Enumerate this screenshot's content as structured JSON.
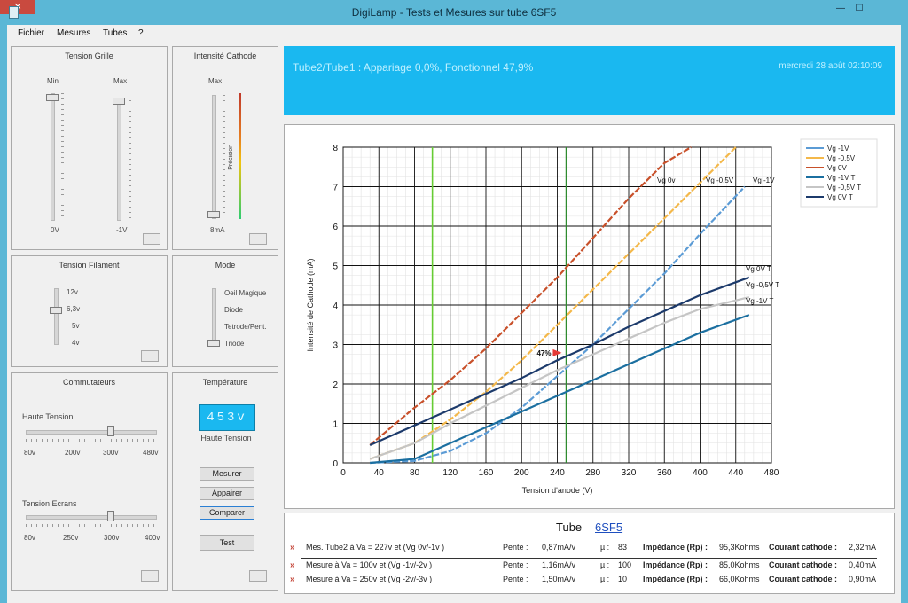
{
  "window": {
    "title": "DigiLamp - Tests et Mesures sur tube 6SF5",
    "minimize": "—",
    "maximize": "☐",
    "close": "✕"
  },
  "menu": [
    "Fichier",
    "Mesures",
    "Tubes",
    "?"
  ],
  "tension_grille": {
    "title": "Tension Grille",
    "min_label": "Min",
    "max_label": "Max",
    "bottom_left": "0V",
    "bottom_right": "-1V"
  },
  "intensite_cathode": {
    "title": "Intensité Cathode",
    "max_label": "Max",
    "bottom": "8mA",
    "vertical": "Précision"
  },
  "tension_filament": {
    "title": "Tension Filament",
    "levels": [
      "12v",
      "6,3v",
      "5v",
      "4v"
    ]
  },
  "mode": {
    "title": "Mode",
    "options": [
      "Oeil Magique",
      "Diode",
      "Tetrode/Pent.",
      "Triode"
    ]
  },
  "commutateurs": {
    "title": "Commutateurs",
    "ht_label": "Haute Tension",
    "ht_ticks": [
      "80v",
      "200v",
      "300v",
      "480v"
    ],
    "ecran_label": "Tension Ecrans",
    "ecran_ticks": [
      "80v",
      "250v",
      "300v",
      "400v"
    ]
  },
  "temperature": {
    "title": "Température",
    "display": "453v",
    "caption": "Haute Tension",
    "buttons": [
      "Mesurer",
      "Appairer",
      "Comparer",
      "Test"
    ]
  },
  "banner": {
    "left": "Tube2/Tube1 : Appariage 0,0%, Fonctionnel 47,9%",
    "right": "mercredi 28 août 02:10:09"
  },
  "chart_data": {
    "type": "line",
    "xlabel": "Tension d'anode (V)",
    "ylabel": "Intensité de Cathode (mA)",
    "xlim": [
      0,
      480
    ],
    "ylim": [
      0,
      8
    ],
    "xticks": [
      0,
      40,
      80,
      120,
      160,
      200,
      240,
      280,
      320,
      360,
      400,
      440,
      480
    ],
    "yticks": [
      0,
      1,
      2,
      3,
      4,
      5,
      6,
      7,
      8
    ],
    "grid": true,
    "legend": "top-right",
    "vlines": [
      {
        "x": 100,
        "color": "#66cc33"
      },
      {
        "x": 250,
        "color": "#2e8b2e"
      }
    ],
    "marker": {
      "x": 235,
      "y": 2.7,
      "label": "47%"
    },
    "series": [
      {
        "name": "Vg -1V",
        "color": "#5b9bd5",
        "dash": true,
        "x": [
          30,
          80,
          120,
          160,
          200,
          240,
          280,
          320,
          360,
          400,
          450
        ],
        "y": [
          0,
          0.05,
          0.3,
          0.75,
          1.4,
          2.2,
          3.0,
          3.9,
          4.8,
          5.8,
          7.0
        ]
      },
      {
        "name": "Vg -0,5V",
        "color": "#f4b84a",
        "dash": true,
        "x": [
          30,
          80,
          120,
          160,
          200,
          240,
          280,
          320,
          360,
          400,
          440
        ],
        "y": [
          0.1,
          0.5,
          1.1,
          1.8,
          2.6,
          3.5,
          4.4,
          5.3,
          6.2,
          7.1,
          8.0
        ]
      },
      {
        "name": "Vg 0V",
        "color": "#c8502a",
        "dash": true,
        "x": [
          30,
          80,
          120,
          160,
          200,
          240,
          280,
          320,
          360,
          390
        ],
        "y": [
          0.45,
          1.4,
          2.1,
          2.9,
          3.8,
          4.7,
          5.7,
          6.7,
          7.6,
          8.0
        ]
      },
      {
        "name": "Vg -1V T",
        "color": "#1b6fa0",
        "dash": false,
        "x": [
          30,
          80,
          120,
          160,
          200,
          240,
          280,
          320,
          360,
          400,
          455
        ],
        "y": [
          0,
          0.1,
          0.5,
          0.9,
          1.3,
          1.7,
          2.1,
          2.5,
          2.9,
          3.3,
          3.75
        ]
      },
      {
        "name": "Vg -0,5V T",
        "color": "#c5c5c5",
        "dash": false,
        "x": [
          30,
          80,
          120,
          160,
          200,
          240,
          280,
          320,
          360,
          400,
          455
        ],
        "y": [
          0.1,
          0.5,
          1.0,
          1.45,
          1.9,
          2.35,
          2.75,
          3.15,
          3.55,
          3.9,
          4.2
        ]
      },
      {
        "name": "Vg 0V T",
        "color": "#1c3a6b",
        "dash": false,
        "x": [
          30,
          80,
          120,
          160,
          200,
          240,
          280,
          320,
          360,
          400,
          455
        ],
        "y": [
          0.45,
          0.95,
          1.35,
          1.75,
          2.15,
          2.6,
          3.0,
          3.45,
          3.85,
          4.25,
          4.7
        ]
      }
    ],
    "annotations": [
      {
        "text": "Vg 0v",
        "x": 420,
        "y": 7.1
      },
      {
        "text": "Vg -0,5V",
        "x": 475,
        "y": 7.1
      },
      {
        "text": "Vg -1V",
        "x": 528,
        "y": 7.1
      },
      {
        "text": "Vg 0V T",
        "x": 520,
        "y": 4.85
      },
      {
        "text": "Vg -0,5V T",
        "x": 520,
        "y": 4.45
      },
      {
        "text": "Vg -1V T",
        "x": 520,
        "y": 4.05
      }
    ]
  },
  "table": {
    "tube_label": "Tube",
    "tube_value": "6SF5",
    "rows": [
      {
        "desc": "Mes. Tube2 à Va = 227v et (Vg 0v/-1v )",
        "pente_label": "Pente :",
        "pente": "0,87mA/v",
        "mu_label": "µ :",
        "mu": "83",
        "imp_label": "Impédance (Rp) :",
        "imp": "95,3Kohms",
        "cour_label": "Courant cathode :",
        "cour": "2,32mA"
      },
      {
        "desc": "Mesure à Va = 100v et (Vg -1v/-2v )",
        "pente_label": "Pente :",
        "pente": "1,16mA/v",
        "mu_label": "µ :",
        "mu": "100",
        "imp_label": "Impédance (Rp) :",
        "imp": "85,0Kohms",
        "cour_label": "Courant cathode :",
        "cour": "0,40mA"
      },
      {
        "desc": "Mesure à Va = 250v et (Vg -2v/-3v )",
        "pente_label": "Pente :",
        "pente": "1,50mA/v",
        "mu_label": "µ :",
        "mu": "10",
        "imp_label": "Impédance (Rp) :",
        "imp": "66,0Kohms",
        "cour_label": "Courant cathode :",
        "cour": "0,90mA"
      }
    ]
  }
}
